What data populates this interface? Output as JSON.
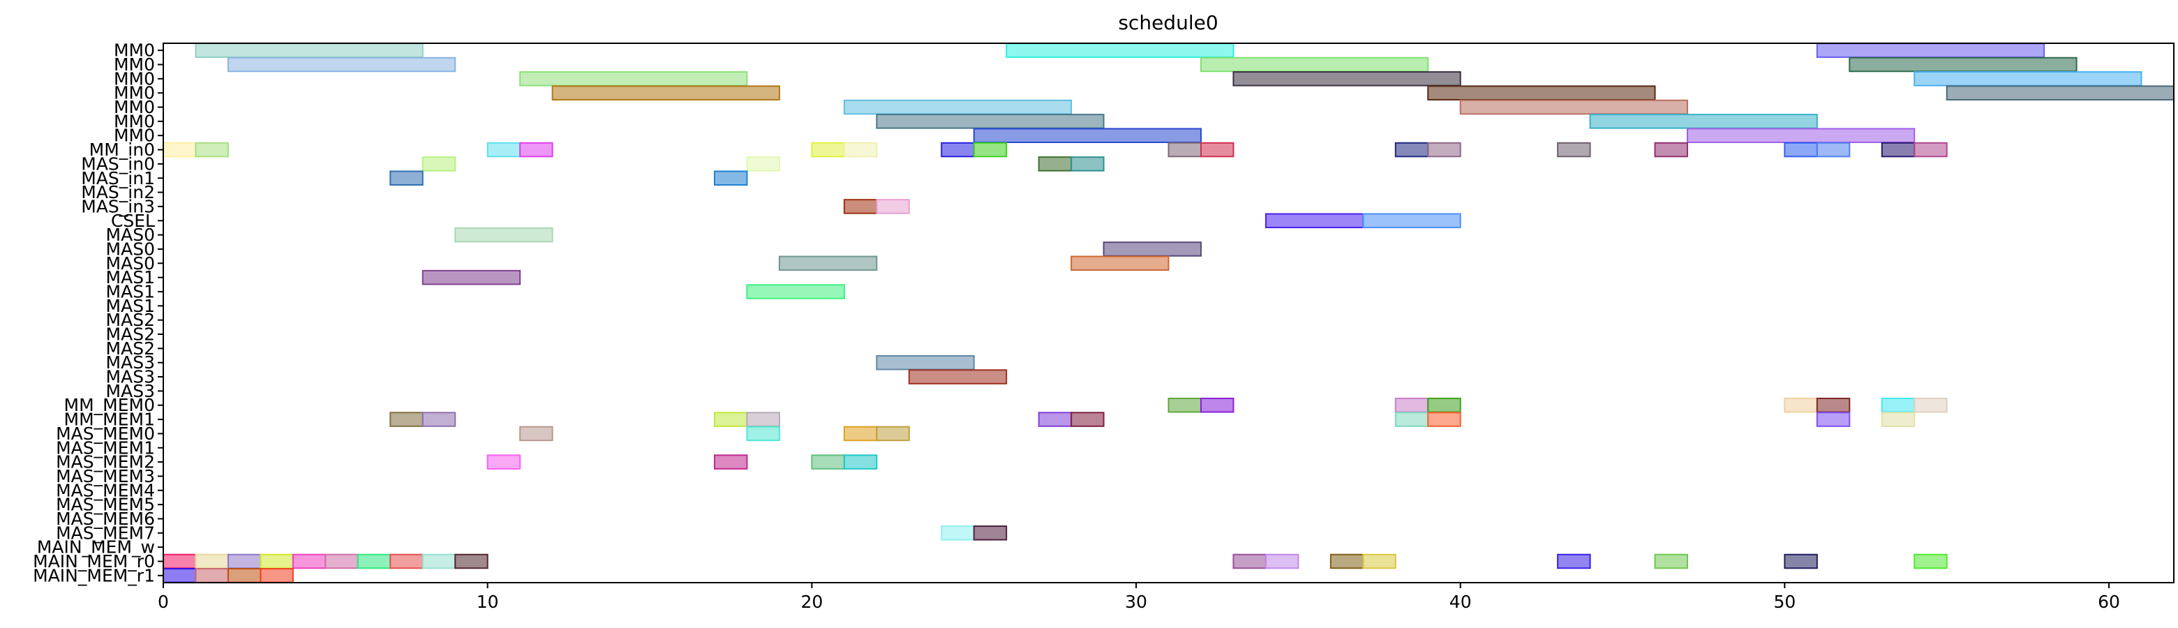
{
  "chart_data": {
    "type": "gantt",
    "title": "schedule0",
    "xlim": [
      0,
      62
    ],
    "x_ticks": [
      "0",
      "10",
      "20",
      "30",
      "40",
      "50",
      "60"
    ],
    "x_tick_values": [
      0,
      10,
      20,
      30,
      40,
      50,
      60
    ],
    "rows": [
      "MM0",
      "MM0",
      "MM0",
      "MM0",
      "MM0",
      "MM0",
      "MM0",
      "MM_in0",
      "MAS_in0",
      "MAS_in1",
      "MAS_in2",
      "MAS_in3",
      "CSEL",
      "MAS0",
      "MAS0",
      "MAS0",
      "MAS1",
      "MAS1",
      "MAS1",
      "MAS2",
      "MAS2",
      "MAS2",
      "MAS3",
      "MAS3",
      "MAS3",
      "MM_MEM0",
      "MM_MEM1",
      "MAS_MEM0",
      "MAS_MEM1",
      "MAS_MEM2",
      "MAS_MEM3",
      "MAS_MEM4",
      "MAS_MEM5",
      "MAS_MEM6",
      "MAS_MEM7",
      "MAIN_MEM_w",
      "MAIN_MEM_r0",
      "MAIN_MEM_r1"
    ],
    "tasks": [
      {
        "row": 0,
        "start": 1,
        "end": 8,
        "color": "#8fd0c4"
      },
      {
        "row": 0,
        "start": 26,
        "end": 33,
        "color": "#2ff0e0"
      },
      {
        "row": 0,
        "start": 51,
        "end": 58,
        "color": "#6a5ef0"
      },
      {
        "row": 1,
        "start": 2,
        "end": 9,
        "color": "#8ab4e0"
      },
      {
        "row": 1,
        "start": 32,
        "end": 39,
        "color": "#7fe070"
      },
      {
        "row": 1,
        "start": 52,
        "end": 59,
        "color": "#2e6b4e"
      },
      {
        "row": 2,
        "start": 11,
        "end": 18,
        "color": "#8ee07a"
      },
      {
        "row": 2,
        "start": 33,
        "end": 40,
        "color": "#3a3040"
      },
      {
        "row": 2,
        "start": 54,
        "end": 61,
        "color": "#4ab0f0"
      },
      {
        "row": 3,
        "start": 12,
        "end": 19,
        "color": "#b07818"
      },
      {
        "row": 3,
        "start": 39,
        "end": 46,
        "color": "#5a2a10"
      },
      {
        "row": 3,
        "start": 55,
        "end": 62,
        "color": "#4a6878"
      },
      {
        "row": 4,
        "start": 21,
        "end": 28,
        "color": "#60c0e0"
      },
      {
        "row": 4,
        "start": 40,
        "end": 47,
        "color": "#b87060"
      },
      {
        "row": 5,
        "start": 22,
        "end": 29,
        "color": "#4a7888"
      },
      {
        "row": 5,
        "start": 44,
        "end": 51,
        "color": "#3ab0c8"
      },
      {
        "row": 6,
        "start": 25,
        "end": 32,
        "color": "#2848d0"
      },
      {
        "row": 6,
        "start": 47,
        "end": 54,
        "color": "#a060e8"
      },
      {
        "row": 7,
        "start": 0,
        "end": 1,
        "color": "#fff0a0"
      },
      {
        "row": 7,
        "start": 1,
        "end": 2,
        "color": "#a8e080"
      },
      {
        "row": 7,
        "start": 10,
        "end": 11,
        "color": "#60e0f0"
      },
      {
        "row": 7,
        "start": 11,
        "end": 12,
        "color": "#e040f0"
      },
      {
        "row": 7,
        "start": 20,
        "end": 21,
        "color": "#e0f040"
      },
      {
        "row": 7,
        "start": 21,
        "end": 22,
        "color": "#f0f0b0"
      },
      {
        "row": 7,
        "start": 24,
        "end": 25,
        "color": "#2820e0"
      },
      {
        "row": 7,
        "start": 25,
        "end": 26,
        "color": "#40d020"
      },
      {
        "row": 7,
        "start": 31,
        "end": 32,
        "color": "#806878"
      },
      {
        "row": 7,
        "start": 32,
        "end": 33,
        "color": "#d03050"
      },
      {
        "row": 7,
        "start": 38,
        "end": 39,
        "color": "#202880"
      },
      {
        "row": 7,
        "start": 39,
        "end": 40,
        "color": "#906888"
      },
      {
        "row": 7,
        "start": 43,
        "end": 44,
        "color": "#706070"
      },
      {
        "row": 7,
        "start": 46,
        "end": 47,
        "color": "#903070"
      },
      {
        "row": 7,
        "start": 50,
        "end": 51,
        "color": "#3060f0"
      },
      {
        "row": 7,
        "start": 51,
        "end": 52,
        "color": "#5080f0"
      },
      {
        "row": 7,
        "start": 53,
        "end": 54,
        "color": "#281870"
      },
      {
        "row": 7,
        "start": 54,
        "end": 55,
        "color": "#b04890"
      },
      {
        "row": 8,
        "start": 8,
        "end": 9,
        "color": "#b8f080"
      },
      {
        "row": 8,
        "start": 18,
        "end": 19,
        "color": "#e0f8b0"
      },
      {
        "row": 8,
        "start": 27,
        "end": 28,
        "color": "#407030"
      },
      {
        "row": 8,
        "start": 28,
        "end": 29,
        "color": "#309090"
      },
      {
        "row": 9,
        "start": 7,
        "end": 8,
        "color": "#3070b0"
      },
      {
        "row": 9,
        "start": 17,
        "end": 18,
        "color": "#2080d0"
      },
      {
        "row": 11,
        "start": 21,
        "end": 22,
        "color": "#a03010"
      },
      {
        "row": 11,
        "start": 22,
        "end": 23,
        "color": "#e8a0d0"
      },
      {
        "row": 12,
        "start": 34,
        "end": 37,
        "color": "#4820f0"
      },
      {
        "row": 12,
        "start": 37,
        "end": 40,
        "color": "#4a90f8"
      },
      {
        "row": 13,
        "start": 9,
        "end": 12,
        "color": "#a8d8b0"
      },
      {
        "row": 14,
        "start": 29,
        "end": 32,
        "color": "#584880"
      },
      {
        "row": 15,
        "start": 19,
        "end": 22,
        "color": "#709890"
      },
      {
        "row": 15,
        "start": 28,
        "end": 31,
        "color": "#d06830"
      },
      {
        "row": 16,
        "start": 8,
        "end": 11,
        "color": "#804090"
      },
      {
        "row": 17,
        "start": 18,
        "end": 21,
        "color": "#40f080"
      },
      {
        "row": 22,
        "start": 22,
        "end": 25,
        "color": "#6088a8"
      },
      {
        "row": 23,
        "start": 23,
        "end": 26,
        "color": "#a03020"
      },
      {
        "row": 25,
        "start": 31,
        "end": 32,
        "color": "#60a840"
      },
      {
        "row": 25,
        "start": 32,
        "end": 33,
        "color": "#8820d8"
      },
      {
        "row": 25,
        "start": 38,
        "end": 39,
        "color": "#c880c8"
      },
      {
        "row": 25,
        "start": 39,
        "end": 40,
        "color": "#40a020"
      },
      {
        "row": 25,
        "start": 50,
        "end": 51,
        "color": "#f0d0a0"
      },
      {
        "row": 25,
        "start": 51,
        "end": 52,
        "color": "#802828"
      },
      {
        "row": 25,
        "start": 53,
        "end": 54,
        "color": "#40e8f0"
      },
      {
        "row": 25,
        "start": 54,
        "end": 55,
        "color": "#e0d0c0"
      },
      {
        "row": 26,
        "start": 7,
        "end": 8,
        "color": "#807040"
      },
      {
        "row": 26,
        "start": 8,
        "end": 9,
        "color": "#9070b0"
      },
      {
        "row": 26,
        "start": 17,
        "end": 18,
        "color": "#c0e840"
      },
      {
        "row": 26,
        "start": 18,
        "end": 19,
        "color": "#b8a8b8"
      },
      {
        "row": 26,
        "start": 27,
        "end": 28,
        "color": "#8040d8"
      },
      {
        "row": 26,
        "start": 28,
        "end": 29,
        "color": "#802040"
      },
      {
        "row": 26,
        "start": 38,
        "end": 39,
        "color": "#80d8c0"
      },
      {
        "row": 26,
        "start": 39,
        "end": 40,
        "color": "#f86030"
      },
      {
        "row": 26,
        "start": 51,
        "end": 52,
        "color": "#8050f0"
      },
      {
        "row": 26,
        "start": 53,
        "end": 54,
        "color": "#e0e0a8"
      },
      {
        "row": 27,
        "start": 11,
        "end": 12,
        "color": "#b89890"
      },
      {
        "row": 27,
        "start": 18,
        "end": 19,
        "color": "#50e8d0"
      },
      {
        "row": 27,
        "start": 21,
        "end": 22,
        "color": "#e0a020"
      },
      {
        "row": 27,
        "start": 22,
        "end": 23,
        "color": "#c0a040"
      },
      {
        "row": 29,
        "start": 10,
        "end": 11,
        "color": "#f860f0"
      },
      {
        "row": 29,
        "start": 17,
        "end": 18,
        "color": "#c02890"
      },
      {
        "row": 29,
        "start": 20,
        "end": 21,
        "color": "#60c080"
      },
      {
        "row": 29,
        "start": 21,
        "end": 22,
        "color": "#20c8c8"
      },
      {
        "row": 34,
        "start": 24,
        "end": 25,
        "color": "#90f0f0"
      },
      {
        "row": 34,
        "start": 25,
        "end": 26,
        "color": "#502040"
      },
      {
        "row": 36,
        "start": 0,
        "end": 1,
        "color": "#f01868"
      },
      {
        "row": 36,
        "start": 1,
        "end": 2,
        "color": "#e8d898"
      },
      {
        "row": 36,
        "start": 2,
        "end": 3,
        "color": "#9078c8"
      },
      {
        "row": 36,
        "start": 3,
        "end": 4,
        "color": "#d0e830"
      },
      {
        "row": 36,
        "start": 4,
        "end": 5,
        "color": "#f040c0"
      },
      {
        "row": 36,
        "start": 5,
        "end": 6,
        "color": "#d070a8"
      },
      {
        "row": 36,
        "start": 6,
        "end": 7,
        "color": "#30e880"
      },
      {
        "row": 36,
        "start": 7,
        "end": 8,
        "color": "#e85050"
      },
      {
        "row": 36,
        "start": 8,
        "end": 9,
        "color": "#98e0d0"
      },
      {
        "row": 36,
        "start": 9,
        "end": 10,
        "color": "#502830"
      },
      {
        "row": 36,
        "start": 33,
        "end": 34,
        "color": "#985098"
      },
      {
        "row": 36,
        "start": 34,
        "end": 35,
        "color": "#c088e8"
      },
      {
        "row": 36,
        "start": 36,
        "end": 37,
        "color": "#806018"
      },
      {
        "row": 36,
        "start": 37,
        "end": 38,
        "color": "#d8c840"
      },
      {
        "row": 36,
        "start": 43,
        "end": 44,
        "color": "#3820e8"
      },
      {
        "row": 36,
        "start": 46,
        "end": 47,
        "color": "#70c850"
      },
      {
        "row": 36,
        "start": 50,
        "end": 51,
        "color": "#202060"
      },
      {
        "row": 36,
        "start": 54,
        "end": 55,
        "color": "#50e830"
      },
      {
        "row": 37,
        "start": 0,
        "end": 1,
        "color": "#3010e8"
      },
      {
        "row": 37,
        "start": 1,
        "end": 2,
        "color": "#c86870"
      },
      {
        "row": 37,
        "start": 2,
        "end": 3,
        "color": "#c05010"
      },
      {
        "row": 37,
        "start": 3,
        "end": 4,
        "color": "#f04020"
      }
    ]
  }
}
